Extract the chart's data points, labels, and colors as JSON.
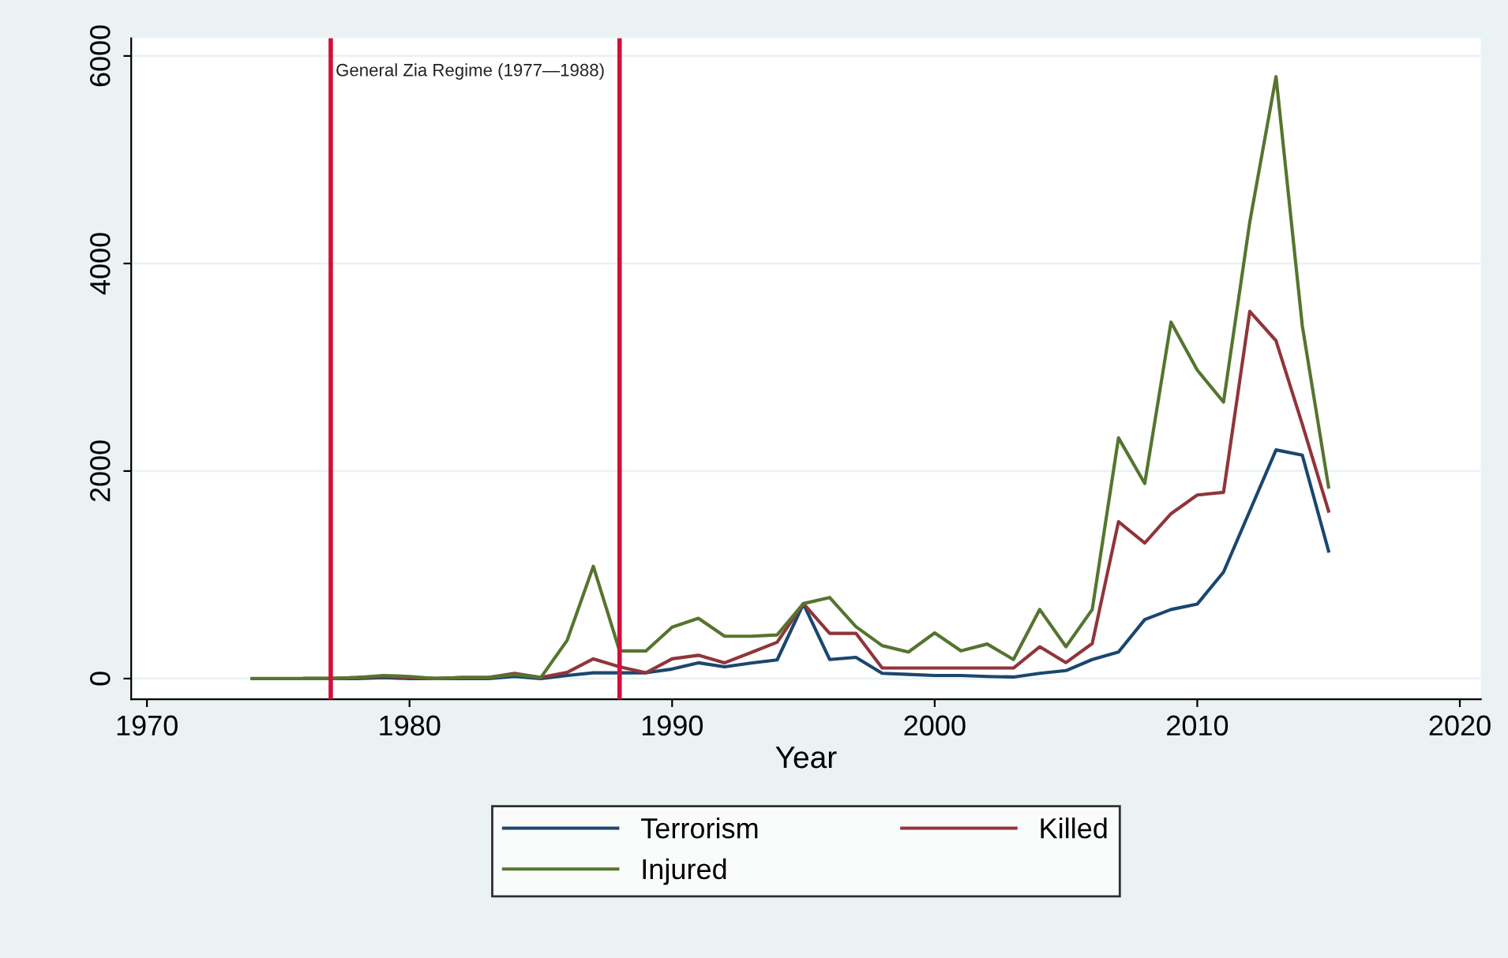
{
  "chart_data": {
    "type": "line",
    "xlabel": "Year",
    "x": [
      1974,
      1975,
      1976,
      1977,
      1978,
      1979,
      1980,
      1981,
      1982,
      1983,
      1984,
      1985,
      1986,
      1987,
      1988,
      1989,
      1990,
      1991,
      1992,
      1993,
      1994,
      1995,
      1996,
      1997,
      1998,
      1999,
      2000,
      2001,
      2002,
      2003,
      2004,
      2005,
      2006,
      2007,
      2008,
      2009,
      2010,
      2011,
      2012,
      2013,
      2014,
      2015
    ],
    "series": [
      {
        "name": "Terrorism",
        "color": "#1a476f",
        "values": [
          null,
          null,
          0,
          0,
          0,
          10,
          0,
          0,
          0,
          0,
          20,
          0,
          30,
          56,
          56,
          56,
          92,
          152,
          113,
          150,
          180,
          720,
          184,
          205,
          51,
          40,
          30,
          30,
          20,
          15,
          51,
          77,
          184,
          256,
          569,
          666,
          718,
          1026,
          1615,
          2204,
          2153,
          1230
        ]
      },
      {
        "name": "Killed",
        "color": "#90353b",
        "values": [
          null,
          null,
          0,
          0,
          10,
          20,
          10,
          0,
          10,
          10,
          50,
          10,
          60,
          190,
          113,
          56,
          190,
          225,
          152,
          250,
          350,
          723,
          436,
          436,
          102,
          102,
          102,
          102,
          102,
          102,
          307,
          154,
          338,
          1512,
          1307,
          1589,
          1769,
          1795,
          3538,
          3256,
          2450,
          1615
        ]
      },
      {
        "name": "Injured",
        "color": "#55752f",
        "values": [
          0,
          0,
          0,
          0,
          10,
          30,
          20,
          0,
          10,
          10,
          40,
          10,
          367,
          1082,
          266,
          266,
          496,
          581,
          408,
          408,
          420,
          723,
          781,
          500,
          318,
          256,
          440,
          267,
          333,
          184,
          666,
          307,
          666,
          2320,
          1880,
          3435,
          2973,
          2665,
          4400,
          5800,
          3400,
          1846
        ]
      }
    ],
    "xlim": [
      1969.4,
      2020.8
    ],
    "xticks": [
      1970,
      1980,
      1990,
      2000,
      2010,
      2020
    ],
    "ylim": [
      -200,
      6170
    ],
    "yticks": [
      0,
      2000,
      4000,
      6000
    ],
    "grid": "y",
    "legend": "bottom",
    "ref_lines": [
      {
        "axis": "x",
        "value": 1977,
        "color": "#d0103a"
      },
      {
        "axis": "x",
        "value": 1988,
        "color": "#d0103a"
      }
    ],
    "annotations": [
      {
        "text": "General Zia Regime (1977—1988)",
        "x": 1977,
        "y": 5850
      }
    ]
  }
}
